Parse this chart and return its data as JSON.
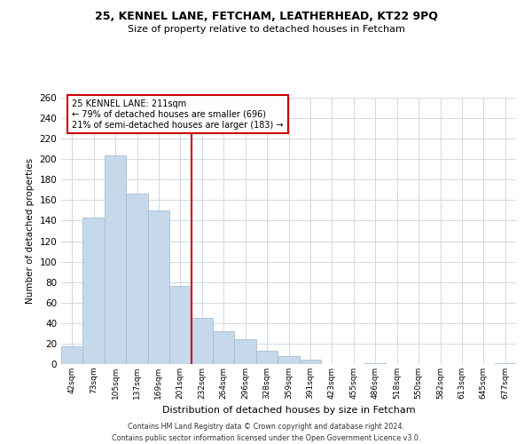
{
  "title1": "25, KENNEL LANE, FETCHAM, LEATHERHEAD, KT22 9PQ",
  "title2": "Size of property relative to detached houses in Fetcham",
  "xlabel": "Distribution of detached houses by size in Fetcham",
  "ylabel": "Number of detached properties",
  "bar_labels": [
    "42sqm",
    "73sqm",
    "105sqm",
    "137sqm",
    "169sqm",
    "201sqm",
    "232sqm",
    "264sqm",
    "296sqm",
    "328sqm",
    "359sqm",
    "391sqm",
    "423sqm",
    "455sqm",
    "486sqm",
    "518sqm",
    "550sqm",
    "582sqm",
    "613sqm",
    "645sqm",
    "677sqm"
  ],
  "bar_values": [
    17,
    143,
    204,
    166,
    150,
    76,
    45,
    32,
    24,
    13,
    8,
    4,
    0,
    0,
    1,
    0,
    0,
    0,
    0,
    0,
    1
  ],
  "bar_color": "#c6d9ea",
  "bar_edge_color": "#9ab8d0",
  "vline_x_index": 5,
  "vline_color": "#cc0000",
  "annotation_title": "25 KENNEL LANE: 211sqm",
  "annotation_line1": "← 79% of detached houses are smaller (696)",
  "annotation_line2": "21% of semi-detached houses are larger (183) →",
  "annotation_box_color": "#cc0000",
  "ylim": [
    0,
    260
  ],
  "yticks": [
    0,
    20,
    40,
    60,
    80,
    100,
    120,
    140,
    160,
    180,
    200,
    220,
    240,
    260
  ],
  "footer1": "Contains HM Land Registry data © Crown copyright and database right 2024.",
  "footer2": "Contains public sector information licensed under the Open Government Licence v3.0.",
  "bg_color": "#ffffff",
  "grid_color": "#d0d8e4"
}
